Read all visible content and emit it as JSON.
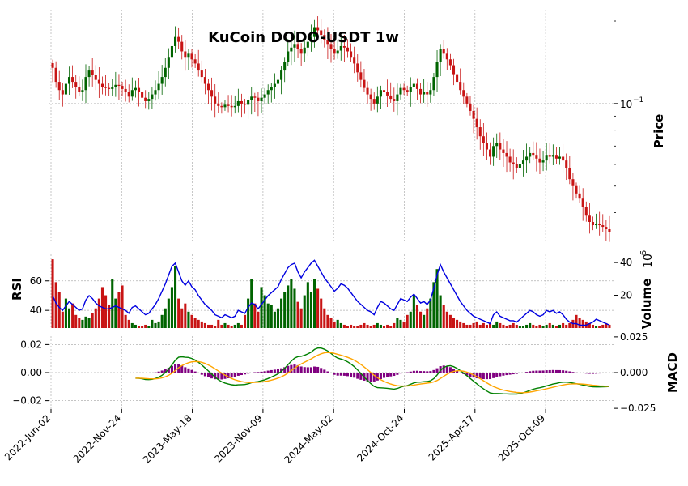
{
  "chart_data": {
    "type": "candlestick",
    "title": "KuCoin DODO-USDT 1w",
    "colors": {
      "up": "#006400",
      "down": "#c81414",
      "rsi": "#0000e0",
      "macd": "#008000",
      "signal": "#ffa500",
      "hist": "#800080"
    },
    "x_ticks": [
      "2022-Jun-02",
      "2022-Nov-24",
      "2023-May-18",
      "2023-Nov-09",
      "2024-May-02",
      "2024-Oct-24",
      "2025-Apr-17",
      "2025-Oct-09"
    ],
    "price_panel": {
      "ylabel": "Price",
      "scale": "log",
      "tick_label": "10",
      "tick_exp": "−1",
      "close": [
        0.135,
        0.12,
        0.112,
        0.108,
        0.118,
        0.125,
        0.12,
        0.115,
        0.11,
        0.112,
        0.125,
        0.132,
        0.127,
        0.122,
        0.118,
        0.115,
        0.114,
        0.113,
        0.115,
        0.117,
        0.116,
        0.113,
        0.11,
        0.106,
        0.112,
        0.114,
        0.11,
        0.105,
        0.102,
        0.104,
        0.108,
        0.112,
        0.118,
        0.125,
        0.135,
        0.148,
        0.162,
        0.175,
        0.168,
        0.155,
        0.148,
        0.152,
        0.145,
        0.14,
        0.132,
        0.125,
        0.118,
        0.112,
        0.106,
        0.1,
        0.098,
        0.097,
        0.099,
        0.098,
        0.097,
        0.098,
        0.102,
        0.1,
        0.099,
        0.103,
        0.106,
        0.105,
        0.102,
        0.105,
        0.108,
        0.112,
        0.115,
        0.118,
        0.122,
        0.132,
        0.142,
        0.155,
        0.16,
        0.165,
        0.158,
        0.152,
        0.16,
        0.168,
        0.175,
        0.19,
        0.185,
        0.178,
        0.17,
        0.165,
        0.158,
        0.152,
        0.156,
        0.162,
        0.16,
        0.155,
        0.148,
        0.14,
        0.13,
        0.122,
        0.114,
        0.108,
        0.104,
        0.1,
        0.106,
        0.112,
        0.11,
        0.107,
        0.104,
        0.102,
        0.108,
        0.114,
        0.112,
        0.11,
        0.115,
        0.118,
        0.113,
        0.108,
        0.11,
        0.108,
        0.112,
        0.125,
        0.142,
        0.158,
        0.152,
        0.145,
        0.138,
        0.128,
        0.12,
        0.112,
        0.106,
        0.1,
        0.094,
        0.088,
        0.082,
        0.076,
        0.072,
        0.068,
        0.064,
        0.07,
        0.072,
        0.068,
        0.066,
        0.064,
        0.061,
        0.06,
        0.058,
        0.06,
        0.062,
        0.064,
        0.066,
        0.065,
        0.063,
        0.061,
        0.062,
        0.065,
        0.064,
        0.065,
        0.063,
        0.064,
        0.062,
        0.058,
        0.053,
        0.05,
        0.047,
        0.045,
        0.042,
        0.039,
        0.037,
        0.036,
        0.0365,
        0.036,
        0.0355,
        0.0348,
        0.034
      ],
      "ylim": [
        0.031,
        0.22
      ]
    },
    "rsi_panel": {
      "ylabel": "RSI",
      "ylim": [
        28,
        78
      ],
      "ticks": [
        40,
        60
      ]
    },
    "volume_panel": {
      "ylabel": "Volume",
      "unit": "10",
      "unit_exp": "6",
      "ylim": [
        0,
        45
      ],
      "ticks": [
        20,
        40
      ]
    },
    "macd_panel": {
      "ylabel": "MACD",
      "left_ticks": [
        "0.02",
        "0.00",
        "−0.02"
      ],
      "right_ticks": [
        "0.025",
        "0.000",
        "−0.025"
      ]
    },
    "volume": [
      42,
      28,
      22,
      10,
      18,
      12,
      15,
      8,
      6,
      5,
      7,
      6,
      9,
      12,
      18,
      25,
      20,
      14,
      30,
      18,
      22,
      26,
      8,
      5,
      3,
      2,
      1,
      1,
      2,
      1,
      5,
      3,
      4,
      8,
      12,
      18,
      25,
      38,
      18,
      12,
      15,
      10,
      8,
      6,
      5,
      4,
      3,
      2,
      2,
      1,
      5,
      2,
      3,
      2,
      1,
      2,
      3,
      2,
      8,
      18,
      30,
      15,
      10,
      25,
      20,
      15,
      14,
      10,
      12,
      18,
      22,
      26,
      30,
      24,
      16,
      12,
      20,
      28,
      22,
      30,
      24,
      18,
      12,
      8,
      6,
      4,
      5,
      3,
      2,
      1,
      2,
      1,
      1,
      2,
      3,
      2,
      1,
      2,
      3,
      2,
      1,
      2,
      1,
      3,
      6,
      5,
      4,
      8,
      10,
      20,
      14,
      10,
      8,
      12,
      18,
      28,
      36,
      20,
      14,
      10,
      8,
      6,
      5,
      4,
      3,
      2,
      2,
      3,
      4,
      2,
      3,
      2,
      3,
      2,
      4,
      3,
      2,
      1,
      2,
      3,
      2,
      1,
      1,
      2,
      3,
      2,
      1,
      2,
      1,
      2,
      3,
      2,
      1,
      2,
      3,
      2,
      3,
      5,
      8,
      6,
      5,
      4,
      3,
      2,
      1,
      1,
      2,
      3,
      2
    ],
    "rsi": [
      50,
      45,
      42,
      40,
      43,
      46,
      44,
      42,
      40,
      41,
      47,
      50,
      48,
      45,
      43,
      42,
      41,
      41,
      42,
      43,
      42,
      41,
      40,
      38,
      42,
      43,
      41,
      39,
      37,
      38,
      41,
      44,
      48,
      53,
      58,
      64,
      70,
      72,
      66,
      60,
      57,
      60,
      56,
      54,
      50,
      47,
      44,
      42,
      40,
      37,
      36,
      35,
      37,
      36,
      35,
      36,
      40,
      39,
      38,
      42,
      45,
      44,
      41,
      44,
      47,
      50,
      52,
      54,
      56,
      61,
      65,
      69,
      71,
      72,
      66,
      62,
      66,
      69,
      72,
      74,
      70,
      66,
      62,
      59,
      56,
      53,
      55,
      58,
      57,
      55,
      52,
      49,
      46,
      44,
      42,
      40,
      39,
      37,
      42,
      46,
      45,
      43,
      41,
      40,
      44,
      48,
      47,
      46,
      49,
      51,
      48,
      45,
      46,
      44,
      47,
      55,
      64,
      71,
      66,
      62,
      58,
      54,
      50,
      46,
      43,
      40,
      38,
      36,
      35,
      34,
      33,
      32,
      31,
      37,
      39,
      36,
      35,
      34,
      33,
      33,
      32,
      34,
      36,
      38,
      40,
      39,
      37,
      36,
      37,
      40,
      39,
      40,
      38,
      39,
      37,
      34,
      32,
      31,
      31,
      30,
      30,
      30,
      31,
      32,
      34,
      33,
      32,
      31,
      30
    ]
  }
}
